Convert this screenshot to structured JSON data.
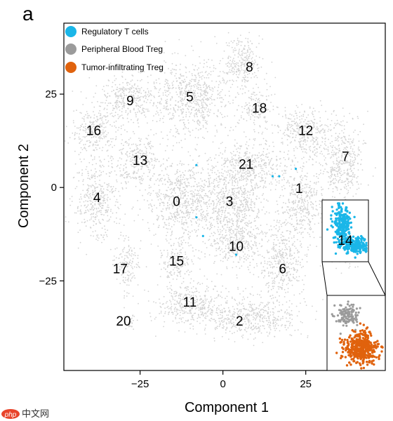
{
  "panel_label": "a",
  "watermark": {
    "brand": "php",
    "text": "中文网"
  },
  "chart_data": {
    "type": "scatter",
    "title": "",
    "xlabel": "Component 1",
    "ylabel": "Component 2",
    "xlim": [
      -48,
      49
    ],
    "ylim": [
      -49,
      44
    ],
    "x_ticks": [
      -25,
      0,
      25
    ],
    "y_ticks": [
      -25,
      0,
      25
    ],
    "x_tick_labels": [
      "−25",
      "0",
      "25"
    ],
    "y_tick_labels": [
      "−25",
      "0",
      "25"
    ],
    "grid": false,
    "legend_position": "top-left",
    "colors": {
      "background_cells": "#d3d3d3",
      "regulatory_t": "#1ab6e8",
      "peripheral_blood": "#9b9b9b",
      "tumor_infiltrating": "#e0620d"
    },
    "legend": [
      {
        "label": "Regulatory T cells",
        "color": "#1ab6e8"
      },
      {
        "label": "Peripheral Blood Treg",
        "color": "#9b9b9b"
      },
      {
        "label": "Tumor-infiltrating Treg",
        "color": "#e0620d"
      }
    ],
    "clusters": [
      {
        "id": "0",
        "label_x": -14,
        "label_y": -4,
        "cx": -12,
        "cy": -4,
        "sx": 7,
        "sy": 7
      },
      {
        "id": "1",
        "label_x": 23,
        "label_y": -0.5,
        "cx": 24,
        "cy": -4,
        "sx": 4,
        "sy": 6
      },
      {
        "id": "2",
        "label_x": 5,
        "label_y": -36,
        "cx": 8,
        "cy": -35,
        "sx": 9,
        "sy": 3.5
      },
      {
        "id": "3",
        "label_x": 2,
        "label_y": -4,
        "cx": 3,
        "cy": -4,
        "sx": 6,
        "sy": 6
      },
      {
        "id": "4",
        "label_x": -38,
        "label_y": -3,
        "cx": -38,
        "cy": -3,
        "sx": 4,
        "sy": 6
      },
      {
        "id": "5",
        "label_x": -10,
        "label_y": 24,
        "cx": -10,
        "cy": 24,
        "sx": 7,
        "sy": 6
      },
      {
        "id": "6",
        "label_x": 18,
        "label_y": -22,
        "cx": 18,
        "cy": -20,
        "sx": 4,
        "sy": 6
      },
      {
        "id": "7",
        "label_x": 37,
        "label_y": 8,
        "cx": 36,
        "cy": 7,
        "sx": 4,
        "sy": 6
      },
      {
        "id": "8",
        "label_x": 8,
        "label_y": 32,
        "cx": 6,
        "cy": 33,
        "sx": 4,
        "sy": 4
      },
      {
        "id": "9",
        "label_x": -28,
        "label_y": 23,
        "cx": -29,
        "cy": 24,
        "sx": 5,
        "sy": 4
      },
      {
        "id": "10",
        "label_x": 4,
        "label_y": -16,
        "cx": 4,
        "cy": -15,
        "sx": 5,
        "sy": 4
      },
      {
        "id": "11",
        "label_x": -10,
        "label_y": -31,
        "cx": -10,
        "cy": -31,
        "sx": 6,
        "sy": 3.5
      },
      {
        "id": "12",
        "label_x": 25,
        "label_y": 15,
        "cx": 25,
        "cy": 15,
        "sx": 5,
        "sy": 4
      },
      {
        "id": "13",
        "label_x": -25,
        "label_y": 7,
        "cx": -26,
        "cy": 7,
        "sx": 4,
        "sy": 4
      },
      {
        "id": "14",
        "label_x": 37,
        "label_y": -14,
        "cx": 37,
        "cy": -14,
        "sx": 3,
        "sy": 4
      },
      {
        "id": "15",
        "label_x": -14,
        "label_y": -20,
        "cx": -14,
        "cy": -20,
        "sx": 3,
        "sy": 3
      },
      {
        "id": "16",
        "label_x": -39,
        "label_y": 15,
        "cx": -39,
        "cy": 15,
        "sx": 4,
        "sy": 4
      },
      {
        "id": "17",
        "label_x": -31,
        "label_y": -22,
        "cx": -29,
        "cy": -21,
        "sx": 2,
        "sy": 4
      },
      {
        "id": "18",
        "label_x": 11,
        "label_y": 21,
        "cx": 10,
        "cy": 21,
        "sx": 3,
        "sy": 3
      },
      {
        "id": "20",
        "label_x": -30,
        "label_y": -36,
        "cx": -28,
        "cy": -36,
        "sx": 1,
        "sy": 1
      },
      {
        "id": "21",
        "label_x": 7,
        "label_y": 6,
        "cx": 8,
        "cy": 6,
        "sx": 6,
        "sy": 4
      }
    ],
    "highlighted_points": [
      {
        "x": -8,
        "y": 6
      },
      {
        "x": -8,
        "y": -8
      },
      {
        "x": -6,
        "y": -13
      },
      {
        "x": 15,
        "y": 3
      },
      {
        "x": 17,
        "y": 3
      },
      {
        "x": 22,
        "y": 5
      },
      {
        "x": 4,
        "y": -18
      }
    ]
  }
}
